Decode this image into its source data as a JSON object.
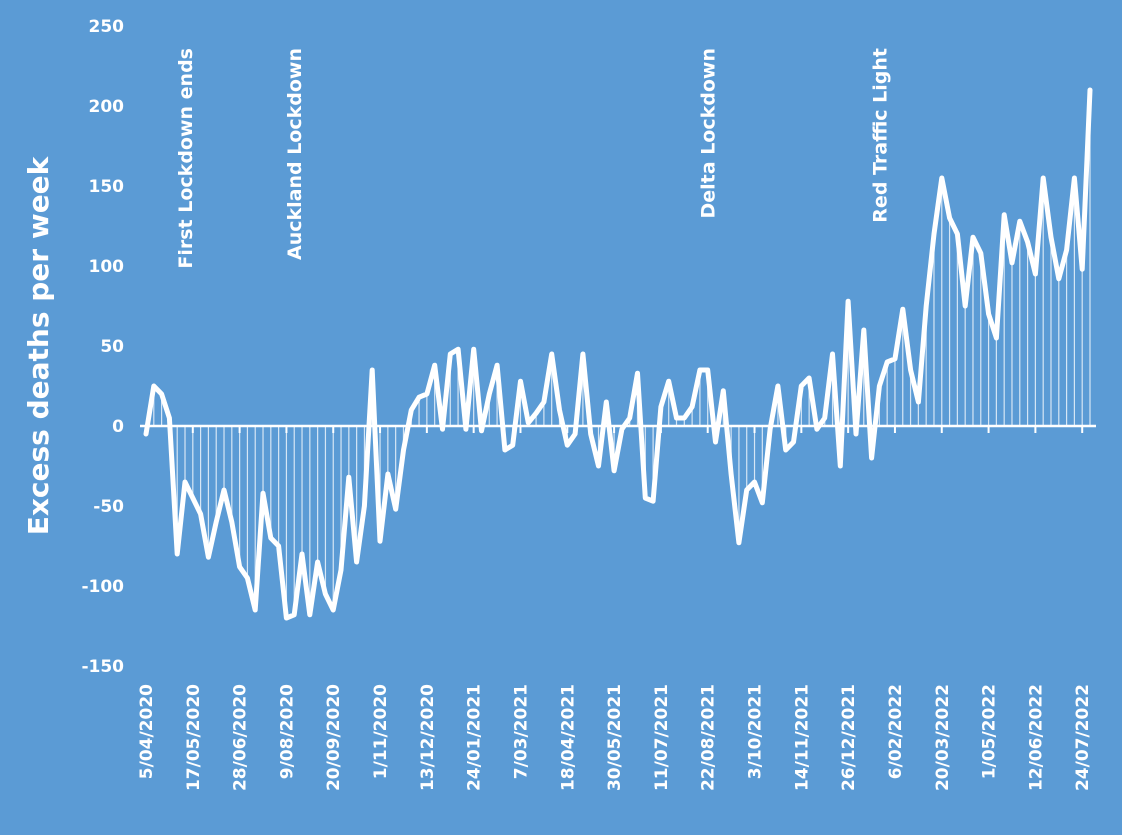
{
  "chart_data": {
    "type": "line",
    "ylabel": "Excess deaths per week",
    "xlabel": "",
    "ylim": [
      -150,
      250
    ],
    "yticks": [
      250,
      200,
      150,
      100,
      50,
      0,
      -50,
      -100,
      -150
    ],
    "grid": false,
    "legend": "none",
    "colors": {
      "background": "#5b9bd5",
      "line": "#ffffff",
      "fill": "#ffffff"
    },
    "x_tick_labels": [
      "5/04/2020",
      "17/05/2020",
      "28/06/2020",
      "9/08/2020",
      "20/09/2020",
      "1/11/2020",
      "13/12/2020",
      "24/01/2021",
      "7/03/2021",
      "18/04/2021",
      "30/05/2021",
      "11/07/2021",
      "22/08/2021",
      "3/10/2021",
      "14/11/2021",
      "26/12/2021",
      "6/02/2022",
      "20/03/2022",
      "1/05/2022",
      "12/06/2022",
      "24/07/2022"
    ],
    "annotations": [
      {
        "text": "First Lockdown ends",
        "date": "10/05/2020"
      },
      {
        "text": "Auckland Lockdown",
        "date": "16/08/2020"
      },
      {
        "text": "Delta Lockdown",
        "date": "22/08/2021"
      },
      {
        "text": "Red Traffic Light",
        "date": "23/01/2022"
      }
    ],
    "series": [
      {
        "x_start": "5/04/2020",
        "x_interval": "weekly",
        "values": [
          -5,
          25,
          20,
          5,
          -80,
          -35,
          -45,
          -55,
          -82,
          -60,
          -40,
          -60,
          -88,
          -95,
          -115,
          -42,
          -70,
          -75,
          -120,
          -118,
          -80,
          -118,
          -85,
          -105,
          -115,
          -90,
          -32,
          -85,
          -50,
          35,
          -72,
          -30,
          -52,
          -15,
          10,
          18,
          20,
          38,
          -2,
          45,
          48,
          -2,
          48,
          -3,
          20,
          38,
          -15,
          -12,
          28,
          2,
          8,
          15,
          45,
          10,
          -12,
          -5,
          45,
          -5,
          -25,
          15,
          -28,
          -2,
          5,
          33,
          -45,
          -47,
          12,
          28,
          5,
          5,
          12,
          35,
          35,
          -10,
          22,
          -30,
          -73,
          -40,
          -35,
          -48,
          -2,
          25,
          -15,
          -10,
          25,
          30,
          -2,
          5,
          45,
          -25,
          78,
          -5,
          60,
          -20,
          25,
          40,
          42,
          73,
          35,
          15,
          75,
          120,
          155,
          130,
          120,
          75,
          118,
          108,
          70,
          55,
          132,
          102,
          128,
          115,
          95,
          155,
          118,
          92,
          110,
          155,
          98,
          210
        ]
      }
    ]
  }
}
